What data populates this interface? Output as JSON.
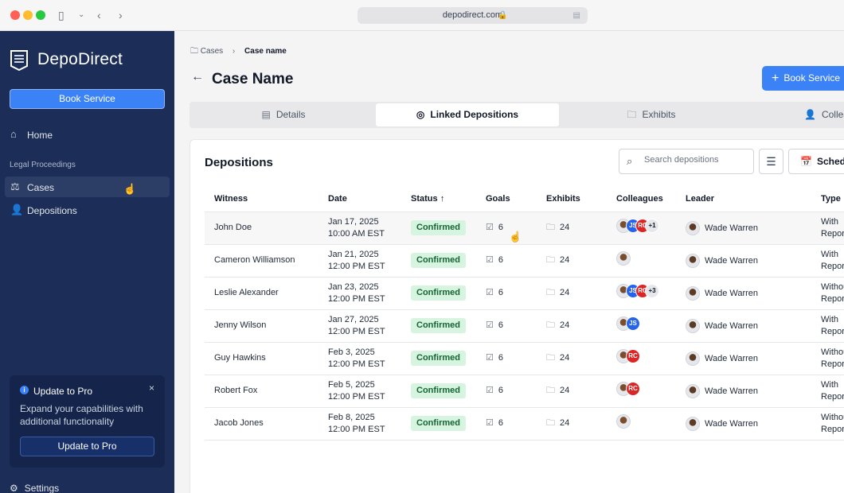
{
  "browser": {
    "url": "depodirect.com"
  },
  "sidebar": {
    "brand": "DepoDirect",
    "book_label": "Book Service",
    "home_label": "Home",
    "section_label": "Legal Proceedings",
    "items": [
      {
        "label": "Cases",
        "icon": "scale-icon",
        "active": true
      },
      {
        "label": "Depositions",
        "icon": "users-icon",
        "active": false
      }
    ],
    "promo": {
      "title": "Update to Pro",
      "description": "Expand your capabilities with additional functionality",
      "button_label": "Update to Pro"
    },
    "settings_label": "Settings"
  },
  "main": {
    "breadcrumb": {
      "root": "Cases",
      "current": "Case name"
    },
    "title": "Case Name",
    "book_label": "Book Service",
    "tabs": [
      {
        "label": "Details",
        "icon": "document-icon"
      },
      {
        "label": "Linked Depositions",
        "icon": "linked-icon",
        "active": true
      },
      {
        "label": "Exhibits",
        "icon": "folder-icon"
      },
      {
        "label": "Colleagues",
        "icon": "user-icon"
      }
    ],
    "section_title": "Depositions",
    "search_placeholder": "Search depositions",
    "schedule_label": "Schedule",
    "columns": [
      "Witness",
      "Date",
      "Status",
      "Goals",
      "Exhibits",
      "Colleagues",
      "Leader",
      "Type"
    ],
    "rows": [
      {
        "witness": "John Doe",
        "date": "Jan 17, 2025",
        "time": "10:00 AM EST",
        "status": "Confirmed",
        "goals": "6",
        "exhibits": "24",
        "colleagues": [
          "face",
          "JS",
          "RC"
        ],
        "more": "+1",
        "leader": "Wade Warren",
        "type1": "With",
        "type2": "Reporter"
      },
      {
        "witness": "Cameron Williamson",
        "date": "Jan 21, 2025",
        "time": "12:00 PM EST",
        "status": "Confirmed",
        "goals": "6",
        "exhibits": "24",
        "colleagues": [
          "face"
        ],
        "more": "",
        "leader": "Wade Warren",
        "type1": "With",
        "type2": "Reporter"
      },
      {
        "witness": "Leslie Alexander",
        "date": "Jan 23, 2025",
        "time": "12:00 PM EST",
        "status": "Confirmed",
        "goals": "6",
        "exhibits": "24",
        "colleagues": [
          "face",
          "JS",
          "RC"
        ],
        "more": "+3",
        "leader": "Wade Warren",
        "type1": "Without",
        "type2": "Reporter"
      },
      {
        "witness": "Jenny Wilson",
        "date": "Jan 27, 2025",
        "time": "12:00 PM EST",
        "status": "Confirmed",
        "goals": "6",
        "exhibits": "24",
        "colleagues": [
          "face",
          "JS"
        ],
        "more": "",
        "leader": "Wade Warren",
        "type1": "With",
        "type2": "Reporter"
      },
      {
        "witness": "Guy Hawkins",
        "date": "Feb 3, 2025",
        "time": "12:00 PM EST",
        "status": "Confirmed",
        "goals": "6",
        "exhibits": "24",
        "colleagues": [
          "face",
          "RC"
        ],
        "more": "",
        "leader": "Wade Warren",
        "type1": "Without",
        "type2": "Reporter"
      },
      {
        "witness": "Robert Fox",
        "date": "Feb 5, 2025",
        "time": "12:00 PM EST",
        "status": "Confirmed",
        "goals": "6",
        "exhibits": "24",
        "colleagues": [
          "face",
          "RC"
        ],
        "more": "",
        "leader": "Wade Warren",
        "type1": "With",
        "type2": "Reporter"
      },
      {
        "witness": "Jacob Jones",
        "date": "Feb 8, 2025",
        "time": "12:00 PM EST",
        "status": "Confirmed",
        "goals": "6",
        "exhibits": "24",
        "colleagues": [
          "face"
        ],
        "more": "",
        "leader": "Wade Warren",
        "type1": "Without",
        "type2": "Reporter"
      }
    ]
  },
  "colors": {
    "sidebar_bg": "#1c2e57",
    "accent": "#3b82f6",
    "status_bg": "#d6f4df",
    "status_text": "#166534"
  }
}
